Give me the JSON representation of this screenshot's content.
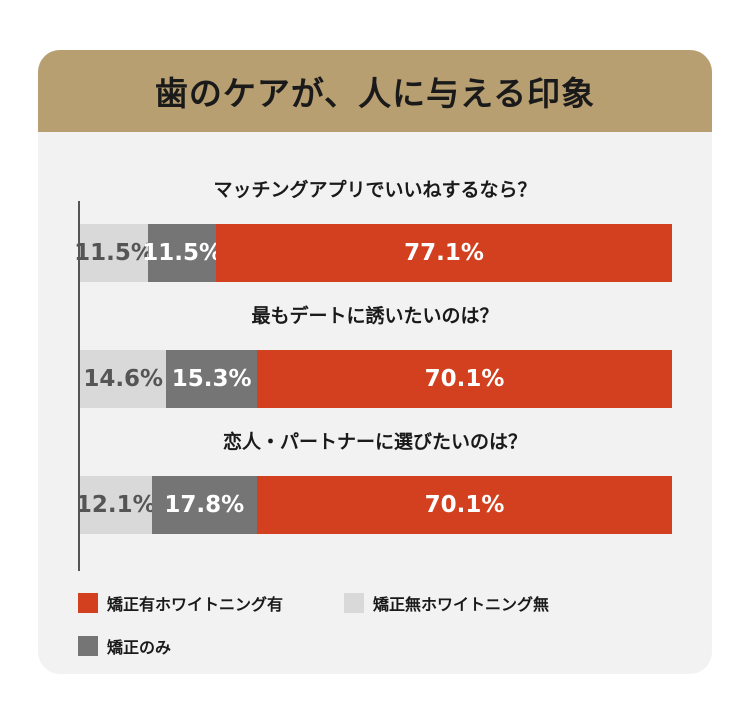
{
  "chart_data": {
    "type": "bar",
    "orientation": "horizontal",
    "stacked": true,
    "title": "歯のケアが、人に与える印象",
    "categories": [
      "マッチングアプリでいいねするなら？",
      "最もデートに誘いたいのは？",
      "恋人・パートナーに選びたいのは？"
    ],
    "series": [
      {
        "name": "矯正無ホワイトニング無",
        "color": "#d9d9d9",
        "text_color": "#555555",
        "values": [
          11.5,
          14.6,
          12.1
        ],
        "labels": [
          "11.5%",
          "14.6%",
          "12.1%"
        ]
      },
      {
        "name": "矯正のみ",
        "color": "#757575",
        "text_color": "#ffffff",
        "values": [
          11.5,
          15.3,
          17.8
        ],
        "labels": [
          "11.5%",
          "15.3%",
          "17.8%"
        ]
      },
      {
        "name": "矯正有ホワイトニング有",
        "color": "#d2401f",
        "text_color": "#ffffff",
        "values": [
          77.1,
          70.1,
          70.1
        ],
        "labels": [
          "77.1%",
          "70.1%",
          "70.1%"
        ]
      }
    ],
    "xlim": [
      0,
      100
    ],
    "legend_position": "bottom-left",
    "grid": false
  }
}
